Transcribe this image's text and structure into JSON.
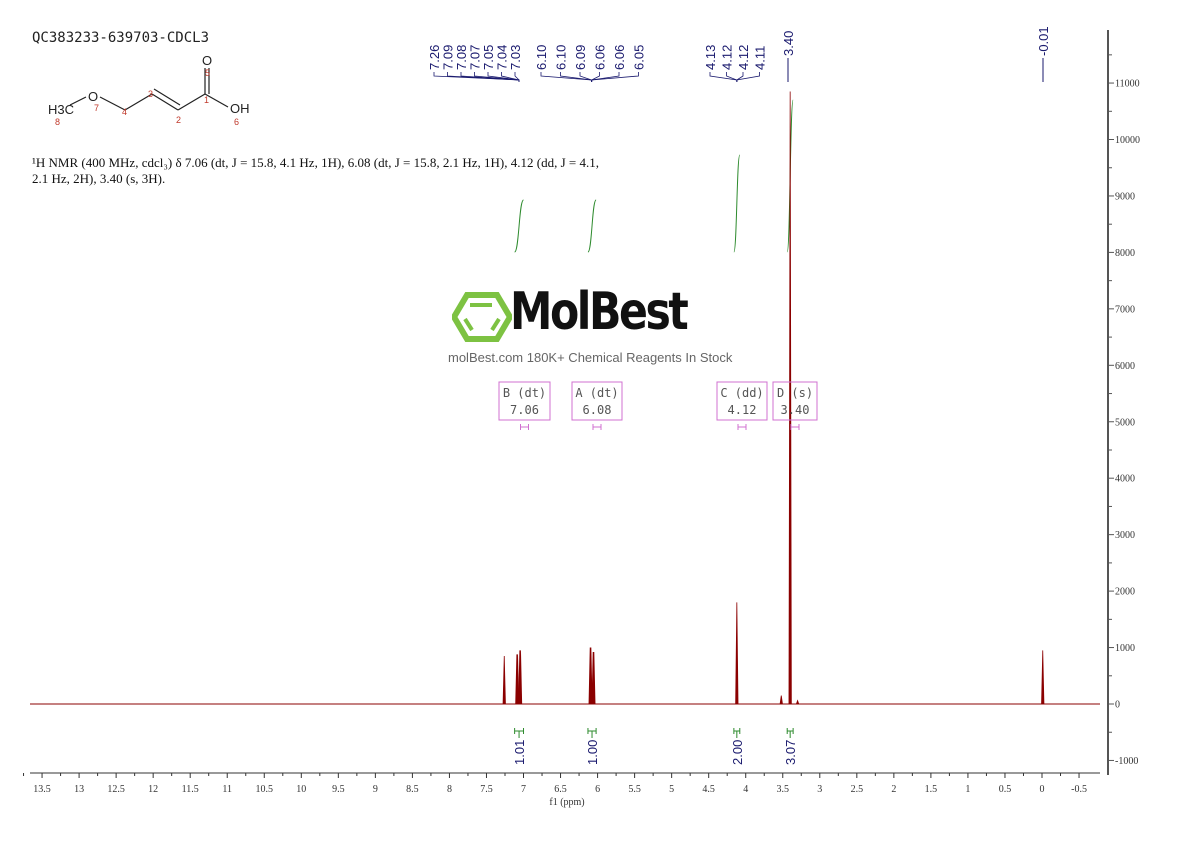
{
  "chart_data": {
    "type": "line",
    "title": "QC383233-639703-CDCL3",
    "xlabel": "f1 (ppm)",
    "ylabel": "",
    "xlim": [
      13.5,
      -0.5
    ],
    "ylim": [
      -1000,
      11000
    ],
    "x_reversed": true,
    "grid": false,
    "xticks": [
      13.5,
      13.0,
      12.5,
      12.0,
      11.5,
      11.0,
      10.5,
      10.0,
      9.5,
      9.0,
      8.5,
      8.0,
      7.5,
      7.0,
      6.5,
      6.0,
      5.5,
      5.0,
      4.5,
      4.0,
      3.5,
      3.0,
      2.5,
      2.0,
      1.5,
      1.0,
      0.5,
      0.0,
      -0.5
    ],
    "yticks": [
      -1000,
      0,
      1000,
      2000,
      3000,
      4000,
      5000,
      6000,
      7000,
      8000,
      9000,
      10000,
      11000
    ],
    "y_axis_side": "right",
    "spectrum_color": "#8b0000",
    "peaks": [
      {
        "ppm": 7.26,
        "intensity": 850
      },
      {
        "ppm": 7.09,
        "intensity": 880
      },
      {
        "ppm": 7.08,
        "intensity": 880
      },
      {
        "ppm": 7.05,
        "intensity": 950
      },
      {
        "ppm": 7.04,
        "intensity": 950
      },
      {
        "ppm": 6.1,
        "intensity": 1000
      },
      {
        "ppm": 6.09,
        "intensity": 1000
      },
      {
        "ppm": 6.06,
        "intensity": 920
      },
      {
        "ppm": 6.05,
        "intensity": 920
      },
      {
        "ppm": 4.12,
        "intensity": 1800
      },
      {
        "ppm": 3.52,
        "intensity": 150
      },
      {
        "ppm": 3.4,
        "intensity": 10850
      },
      {
        "ppm": 3.3,
        "intensity": 60
      },
      {
        "ppm": -0.01,
        "intensity": 950
      }
    ],
    "peak_label_groups": [
      {
        "labels": [
          "7.26",
          "7.09",
          "7.08",
          "7.07",
          "7.05",
          "7.04",
          "7.03"
        ],
        "ppm": 7.06
      },
      {
        "labels": [
          "6.10",
          "6.10",
          "6.09",
          "6.06",
          "6.06",
          "6.05"
        ],
        "ppm": 6.08
      },
      {
        "labels": [
          "4.13",
          "4.12",
          "4.12",
          "4.11"
        ],
        "ppm": 4.12
      },
      {
        "labels": [
          "3.40"
        ],
        "ppm": 3.4
      },
      {
        "labels": [
          "-0.01"
        ],
        "ppm": -0.01
      }
    ],
    "integrals": [
      {
        "from": 7.12,
        "to": 7.0,
        "value": "1.01"
      },
      {
        "from": 6.13,
        "to": 6.02,
        "value": "1.00"
      },
      {
        "from": 4.16,
        "to": 4.08,
        "value": "2.00"
      },
      {
        "from": 3.44,
        "to": 3.36,
        "value": "3.07"
      }
    ],
    "multiplets": [
      {
        "name": "B (dt)",
        "shift": "7.06"
      },
      {
        "name": "A (dt)",
        "shift": "6.08"
      },
      {
        "name": "C (dd)",
        "shift": "4.12"
      },
      {
        "name": "D (s)",
        "shift": "3.40"
      }
    ]
  },
  "structure": {
    "atoms": {
      "h3c": "H3C",
      "o7": "O",
      "o5": "O",
      "oh": "OH"
    },
    "numbers": [
      "1",
      "2",
      "3",
      "4",
      "5",
      "6",
      "7",
      "8"
    ]
  },
  "description": "¹H NMR (400 MHz, cdcl₃) δ 7.06 (dt, J = 15.8, 4.1 Hz, 1H), 6.08 (dt, J = 15.8, 2.1 Hz, 1H), 4.12 (dd, J = 4.1, 2.1 Hz, 2H), 3.40 (s, 3H).",
  "watermark": {
    "brand": "MolBest",
    "tagline": "molBest.com 180K+ Chemical Reagents In Stock",
    "color": "#7dc242"
  }
}
